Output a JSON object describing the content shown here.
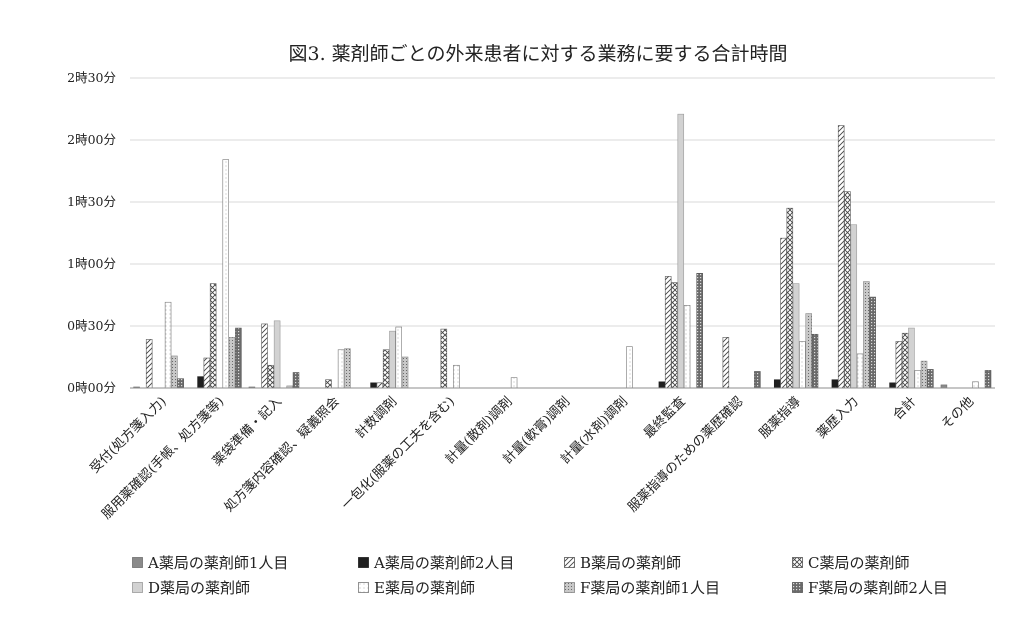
{
  "chart_data": {
    "type": "bar",
    "title": "図3. 薬剤師ごとの外来患者に対する業務に要する合計時間",
    "xlabel": "",
    "ylabel": "",
    "y_unit": "minutes",
    "ylim": [
      0,
      150
    ],
    "yticks": [
      {
        "value": 0,
        "label": "0時00分"
      },
      {
        "value": 30,
        "label": "0時30分"
      },
      {
        "value": 60,
        "label": "1時00分"
      },
      {
        "value": 90,
        "label": "1時30分"
      },
      {
        "value": 120,
        "label": "2時00分"
      },
      {
        "value": 150,
        "label": "2時30分"
      }
    ],
    "grid": true,
    "legend_position": "bottom",
    "categories": [
      "受付(処方箋入力)",
      "服用薬確認(手帳、処方箋等)",
      "薬袋準備・記入",
      "処方箋内容確認、疑義照会",
      "計数調剤",
      "一包化(服薬の工夫を含む)",
      "計量(散剤)調剤",
      "計量(軟膏)調剤",
      "計量(水剤)調剤",
      "最終監査",
      "服薬指導のための薬歴確認",
      "服薬指導",
      "薬歴入力",
      "合計",
      "その他"
    ],
    "series": [
      {
        "name": "A薬局の薬剤師1人目",
        "pattern": "solid-gray",
        "values": [
          0.5,
          0,
          0.5,
          0,
          0,
          0,
          0,
          0,
          0,
          0,
          0,
          0,
          0,
          0,
          1.5
        ]
      },
      {
        "name": "A薬局の薬剤師2人目",
        "pattern": "solid-black",
        "values": [
          0,
          5.5,
          0,
          0,
          2.5,
          0,
          0,
          0,
          0,
          3,
          0,
          4,
          4,
          2.5,
          0
        ]
      },
      {
        "name": "B薬局の薬剤師",
        "pattern": "diagonal",
        "values": [
          23.5,
          14.5,
          31,
          0,
          2.5,
          0,
          0,
          0,
          0,
          54,
          24.5,
          72.5,
          127,
          22.5,
          0
        ]
      },
      {
        "name": "C薬局の薬剤師",
        "pattern": "crosshatch",
        "values": [
          0,
          50.5,
          11,
          4,
          18.5,
          28.5,
          0,
          0,
          0,
          51,
          0,
          87,
          95,
          26.5,
          0
        ]
      },
      {
        "name": "D薬局の薬剤師",
        "pattern": "light-gray",
        "values": [
          0,
          0,
          32.5,
          0,
          27.5,
          0,
          0,
          0,
          0,
          132.5,
          0,
          50.5,
          79,
          29,
          0
        ]
      },
      {
        "name": "E薬局の薬剤師",
        "pattern": "open",
        "values": [
          41.5,
          110.5,
          0,
          18.5,
          29.5,
          11,
          5,
          0,
          20,
          40,
          0,
          22.5,
          16.5,
          8.5,
          3
        ]
      },
      {
        "name": "F薬局の薬剤師1人目",
        "pattern": "dotted",
        "values": [
          15.5,
          24.5,
          1,
          19,
          15,
          0,
          0,
          0,
          0,
          0,
          0,
          36,
          51.5,
          13,
          0
        ]
      },
      {
        "name": "F薬局の薬剤師2人目",
        "pattern": "dark-dotted",
        "values": [
          4.5,
          29,
          7.5,
          0,
          0,
          0,
          0,
          0,
          0,
          55.5,
          8,
          26,
          44,
          9,
          8.5
        ]
      }
    ]
  }
}
